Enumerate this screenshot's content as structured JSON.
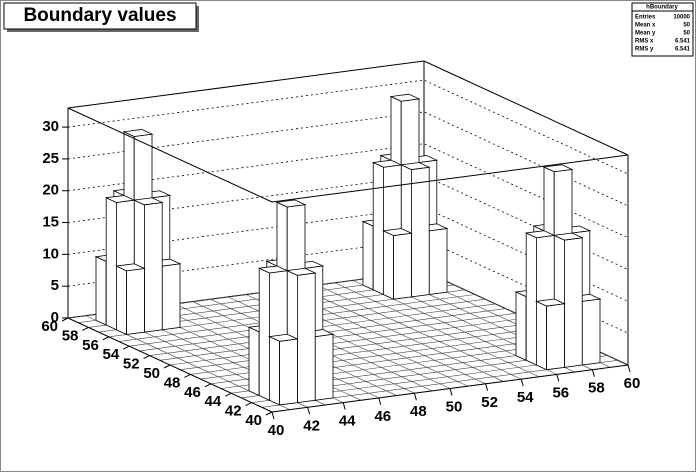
{
  "chart_data": {
    "type": "lego",
    "title": "Boundary values",
    "xlim": [
      40,
      60
    ],
    "ylim": [
      40,
      60
    ],
    "zlim": [
      0,
      33
    ],
    "xbins": 20,
    "ybins": 20,
    "xticks": [
      40,
      42,
      44,
      46,
      48,
      50,
      52,
      54,
      56,
      58,
      60
    ],
    "yticks": [
      40,
      42,
      44,
      46,
      48,
      50,
      52,
      54,
      56,
      58,
      60
    ],
    "zticks": [
      0,
      5,
      10,
      15,
      20,
      25,
      30
    ],
    "color": "#ffffff",
    "cells": [
      {
        "x": 41,
        "y": 41,
        "value": 10
      },
      {
        "x": 42,
        "y": 41,
        "value": 20
      },
      {
        "x": 43,
        "y": 41,
        "value": 10
      },
      {
        "x": 41,
        "y": 42,
        "value": 20
      },
      {
        "x": 42,
        "y": 42,
        "value": 30
      },
      {
        "x": 43,
        "y": 42,
        "value": 20
      },
      {
        "x": 41,
        "y": 43,
        "value": 10
      },
      {
        "x": 42,
        "y": 43,
        "value": 20
      },
      {
        "x": 43,
        "y": 43,
        "value": 10
      },
      {
        "x": 56,
        "y": 41,
        "value": 10
      },
      {
        "x": 57,
        "y": 41,
        "value": 20
      },
      {
        "x": 58,
        "y": 41,
        "value": 10
      },
      {
        "x": 56,
        "y": 42,
        "value": 20
      },
      {
        "x": 57,
        "y": 42,
        "value": 30
      },
      {
        "x": 58,
        "y": 42,
        "value": 20
      },
      {
        "x": 56,
        "y": 43,
        "value": 10
      },
      {
        "x": 57,
        "y": 43,
        "value": 20
      },
      {
        "x": 58,
        "y": 43,
        "value": 10
      },
      {
        "x": 41,
        "y": 56,
        "value": 10
      },
      {
        "x": 42,
        "y": 56,
        "value": 20
      },
      {
        "x": 43,
        "y": 56,
        "value": 10
      },
      {
        "x": 41,
        "y": 57,
        "value": 20
      },
      {
        "x": 42,
        "y": 57,
        "value": 30
      },
      {
        "x": 43,
        "y": 57,
        "value": 20
      },
      {
        "x": 41,
        "y": 58,
        "value": 10
      },
      {
        "x": 42,
        "y": 58,
        "value": 20
      },
      {
        "x": 43,
        "y": 58,
        "value": 10
      },
      {
        "x": 56,
        "y": 56,
        "value": 10
      },
      {
        "x": 57,
        "y": 56,
        "value": 20
      },
      {
        "x": 58,
        "y": 56,
        "value": 10
      },
      {
        "x": 56,
        "y": 57,
        "value": 20
      },
      {
        "x": 57,
        "y": 57,
        "value": 30
      },
      {
        "x": 58,
        "y": 57,
        "value": 20
      },
      {
        "x": 56,
        "y": 58,
        "value": 10
      },
      {
        "x": 57,
        "y": 58,
        "value": 20
      },
      {
        "x": 58,
        "y": 58,
        "value": 10
      }
    ],
    "stats": {
      "name": "hBoundary",
      "rows": [
        {
          "label": "Entries",
          "value": 10000
        },
        {
          "label": "Mean x",
          "value": 50
        },
        {
          "label": "Mean y",
          "value": 50
        },
        {
          "label": "RMS x",
          "value": 6.541
        },
        {
          "label": "RMS y",
          "value": 6.541
        }
      ]
    }
  }
}
